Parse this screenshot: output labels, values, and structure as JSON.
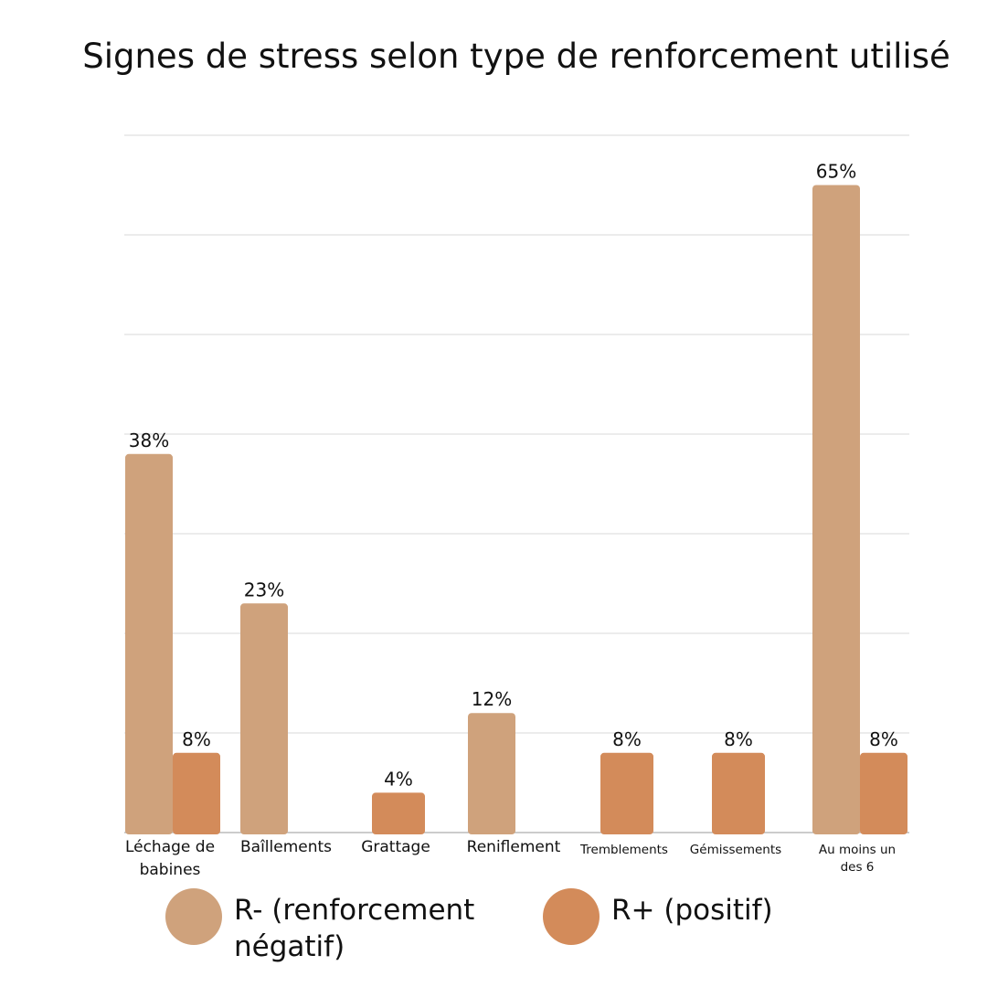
{
  "chart_data": {
    "type": "bar",
    "title": "Signes de stress selon type de renforcement utilisé",
    "categories": [
      {
        "label": "Léchage de babines",
        "lines": [
          "Léchage de",
          "babines"
        ]
      },
      {
        "label": "Baîllements",
        "lines": [
          "Baîllements"
        ]
      },
      {
        "label": "Grattage",
        "lines": [
          "Grattage"
        ]
      },
      {
        "label": "Reniflement",
        "lines": [
          "Reniflement"
        ]
      },
      {
        "label": "Tremblements",
        "lines": [
          "Tremblements"
        ]
      },
      {
        "label": "Gémissements",
        "lines": [
          "Gémissements"
        ]
      },
      {
        "label": "Au moins un des 6",
        "lines": [
          "Au moins un",
          "des 6"
        ]
      }
    ],
    "series": [
      {
        "name": "R- (renforcement négatif)",
        "color": "#cfa27c",
        "values": [
          38,
          23,
          null,
          12,
          null,
          null,
          65
        ],
        "labels": [
          "38%",
          "23%",
          "",
          "12%",
          "",
          "",
          "65%"
        ]
      },
      {
        "name": "R+ (positif)",
        "color": "#d38b5a",
        "values": [
          8,
          null,
          4,
          null,
          8,
          8,
          8
        ],
        "labels": [
          "8%",
          "",
          "4%",
          "",
          "8%",
          "8%",
          "8%"
        ]
      }
    ],
    "ylim": [
      0,
      70
    ],
    "grid": true,
    "legend_position": "bottom"
  }
}
